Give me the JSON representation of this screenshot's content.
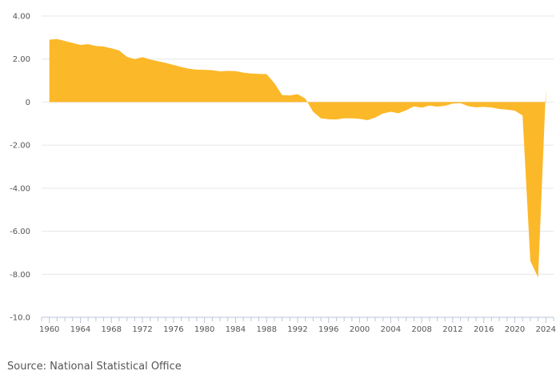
{
  "source": "Source: National Statistical Office",
  "chart_data": {
    "type": "area",
    "title": "",
    "xlabel": "",
    "ylabel": "",
    "color": "#fbb829",
    "ylim": [
      -10,
      4
    ],
    "xlim": [
      1959,
      2025
    ],
    "grid": true,
    "legend": false,
    "yticks": [
      4,
      2,
      0,
      -2,
      -4,
      -6,
      -8,
      -10
    ],
    "ytick_labels": [
      "4.00",
      "2.00",
      "0",
      "-2.00",
      "-4.00",
      "-6.00",
      "-8.00",
      "-10.0"
    ],
    "xticks": [
      1960,
      1964,
      1968,
      1972,
      1976,
      1980,
      1984,
      1988,
      1992,
      1996,
      2000,
      2004,
      2008,
      2012,
      2016,
      2020,
      2024
    ],
    "xtick_labels": [
      "1960",
      "1964",
      "1968",
      "1972",
      "1976",
      "1980",
      "1984",
      "1988",
      "1992",
      "1996",
      "2000",
      "2004",
      "2008",
      "2012",
      "2016",
      "2020",
      "2024"
    ],
    "x": [
      1960,
      1961,
      1962,
      1963,
      1964,
      1965,
      1966,
      1967,
      1968,
      1969,
      1970,
      1971,
      1972,
      1973,
      1974,
      1975,
      1976,
      1977,
      1978,
      1979,
      1980,
      1981,
      1982,
      1983,
      1984,
      1985,
      1986,
      1987,
      1988,
      1989,
      1990,
      1991,
      1992,
      1993,
      1994,
      1995,
      1996,
      1997,
      1998,
      1999,
      2000,
      2001,
      2002,
      2003,
      2004,
      2005,
      2006,
      2007,
      2008,
      2009,
      2010,
      2011,
      2012,
      2013,
      2014,
      2015,
      2016,
      2017,
      2018,
      2019,
      2020,
      2021,
      2022,
      2023,
      2024
    ],
    "values": [
      2.9,
      2.93,
      2.84,
      2.75,
      2.66,
      2.69,
      2.61,
      2.58,
      2.5,
      2.4,
      2.1,
      2.0,
      2.09,
      1.98,
      1.9,
      1.82,
      1.73,
      1.63,
      1.55,
      1.51,
      1.5,
      1.48,
      1.43,
      1.45,
      1.44,
      1.37,
      1.33,
      1.31,
      1.3,
      0.88,
      0.33,
      0.31,
      0.37,
      0.16,
      -0.45,
      -0.75,
      -0.8,
      -0.81,
      -0.75,
      -0.75,
      -0.78,
      -0.84,
      -0.72,
      -0.53,
      -0.45,
      -0.52,
      -0.38,
      -0.2,
      -0.26,
      -0.16,
      -0.21,
      -0.17,
      -0.07,
      -0.05,
      -0.19,
      -0.24,
      -0.22,
      -0.25,
      -0.32,
      -0.35,
      -0.4,
      -0.62,
      -7.38,
      -8.15,
      0.58
    ]
  }
}
